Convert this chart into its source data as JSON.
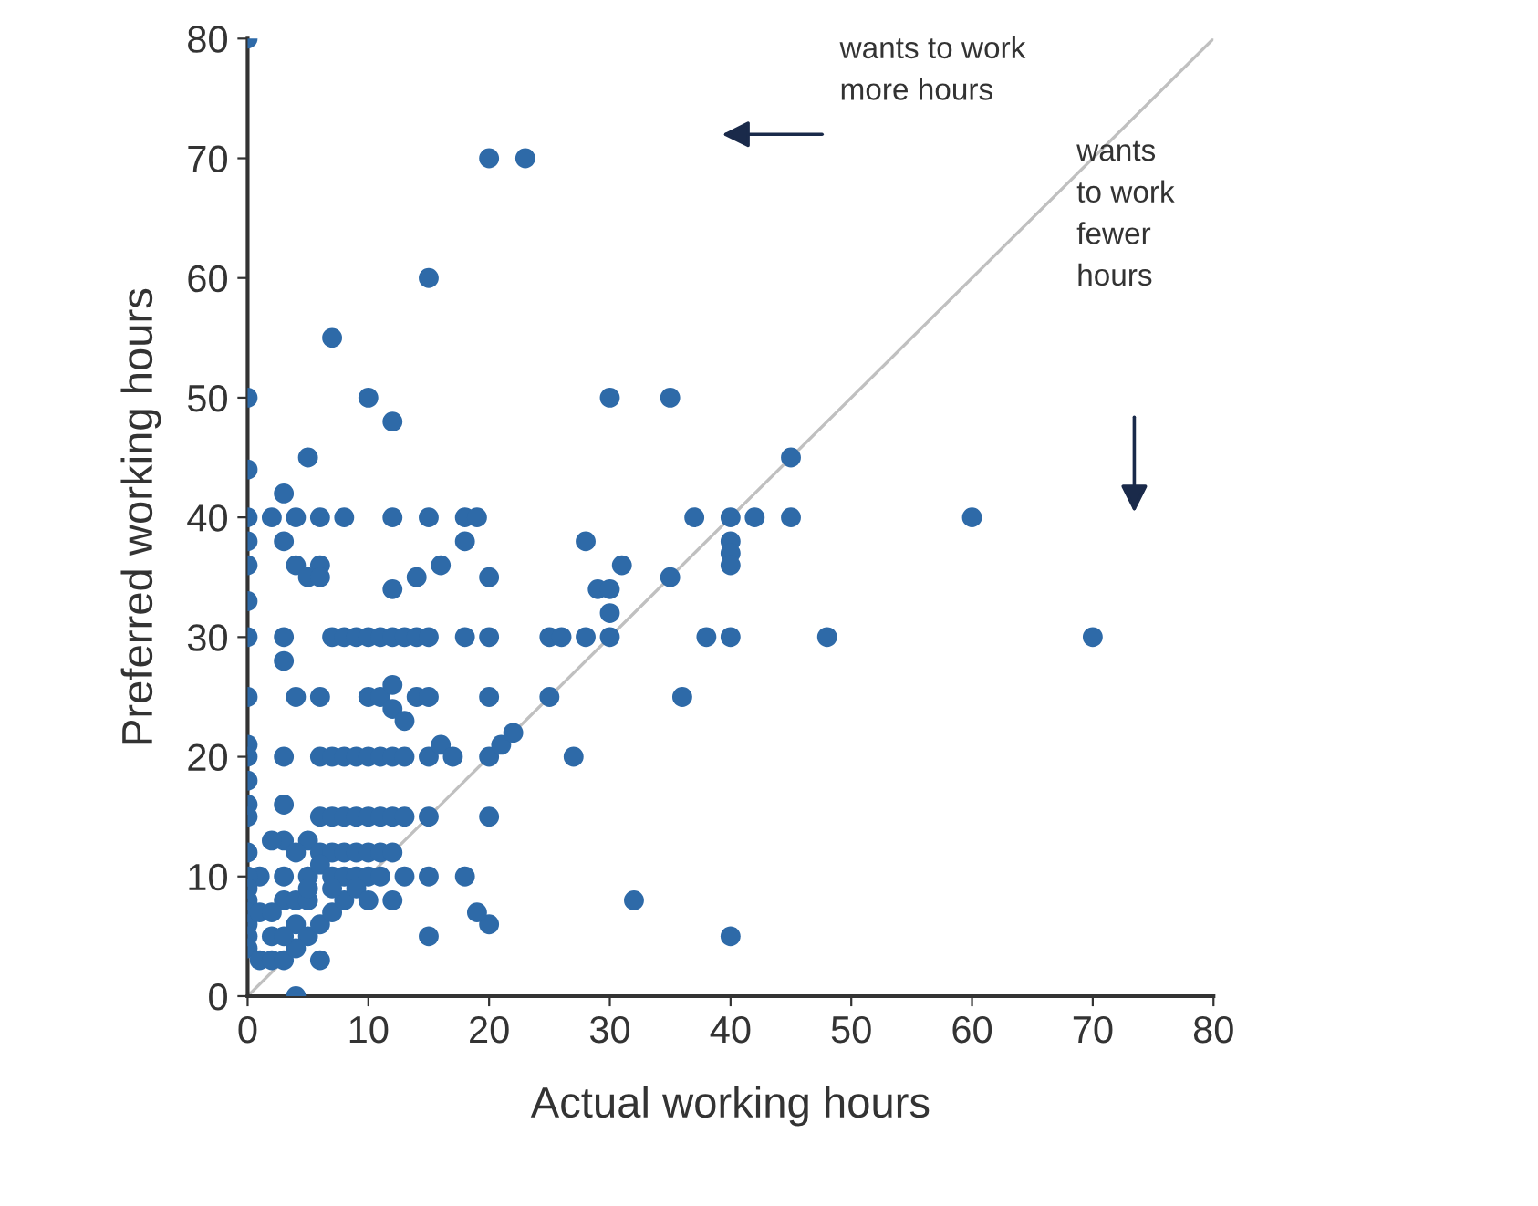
{
  "chart_data": {
    "type": "scatter",
    "xlabel": "Actual working hours",
    "ylabel": "Preferred working hours",
    "xlim": [
      0,
      80
    ],
    "ylim": [
      0,
      80
    ],
    "xticks": [
      0,
      10,
      20,
      30,
      40,
      50,
      60,
      70,
      80
    ],
    "yticks": [
      0,
      10,
      20,
      30,
      40,
      50,
      60,
      70,
      80
    ],
    "grid": false,
    "annotations": [
      "wants to work\nmore hours",
      "wants\nto work\nfewer\nhours"
    ],
    "series": [
      {
        "color": "#2e6aa8",
        "marker": "circle",
        "x": [
          0,
          20,
          23,
          15,
          7,
          10,
          0,
          12,
          30,
          35,
          0,
          5,
          45,
          0,
          2,
          4,
          6,
          8,
          12,
          15,
          18,
          19,
          37,
          40,
          42,
          45,
          60,
          3,
          3,
          0,
          18,
          28,
          0,
          4,
          6,
          12,
          14,
          16,
          20,
          29,
          30,
          31,
          35,
          40,
          40,
          40,
          0,
          5,
          6,
          0,
          3,
          7,
          8,
          9,
          10,
          11,
          12,
          13,
          14,
          15,
          18,
          20,
          25,
          26,
          28,
          30,
          30,
          38,
          40,
          48,
          70,
          3,
          0,
          4,
          6,
          10,
          11,
          12,
          12,
          13,
          14,
          15,
          20,
          25,
          36,
          0,
          0,
          3,
          6,
          7,
          8,
          9,
          10,
          11,
          12,
          13,
          15,
          16,
          17,
          20,
          21,
          22,
          27,
          0,
          0,
          3,
          0,
          3,
          6,
          7,
          8,
          9,
          10,
          11,
          12,
          13,
          15,
          20,
          2,
          5,
          0,
          4,
          6,
          7,
          8,
          9,
          10,
          11,
          12,
          1,
          3,
          5,
          6,
          7,
          8,
          9,
          10,
          11,
          13,
          15,
          18,
          0,
          0,
          0,
          0,
          0,
          0,
          0,
          1,
          2,
          3,
          4,
          5,
          6,
          7,
          8,
          9,
          1,
          2,
          3,
          4,
          5,
          6,
          10,
          12,
          15,
          20,
          19,
          32,
          40,
          4,
          5,
          7,
          4,
          3,
          2
        ],
        "values": [
          80,
          70,
          70,
          60,
          55,
          50,
          50,
          48,
          50,
          50,
          44,
          45,
          45,
          40,
          40,
          40,
          40,
          40,
          40,
          40,
          40,
          40,
          40,
          40,
          40,
          40,
          40,
          42,
          38,
          38,
          38,
          38,
          36,
          36,
          36,
          34,
          35,
          36,
          35,
          34,
          34,
          36,
          35,
          38,
          37,
          36,
          33,
          35,
          35,
          30,
          30,
          30,
          30,
          30,
          30,
          30,
          30,
          30,
          30,
          30,
          30,
          30,
          30,
          30,
          30,
          30,
          32,
          30,
          30,
          30,
          30,
          28,
          25,
          25,
          25,
          25,
          25,
          26,
          24,
          23,
          25,
          25,
          25,
          25,
          25,
          21,
          20,
          20,
          20,
          20,
          20,
          20,
          20,
          20,
          20,
          20,
          20,
          21,
          20,
          20,
          21,
          22,
          20,
          18,
          16,
          16,
          15,
          13,
          15,
          15,
          15,
          15,
          15,
          15,
          15,
          15,
          15,
          15,
          13,
          13,
          12,
          12,
          12,
          12,
          12,
          12,
          12,
          12,
          12,
          10,
          10,
          10,
          11,
          10,
          10,
          10,
          10,
          10,
          10,
          10,
          10,
          10,
          9,
          8,
          7,
          6,
          5,
          4,
          3,
          3,
          3,
          6,
          5,
          6,
          7,
          8,
          9,
          7,
          5,
          8,
          8,
          8,
          3,
          8,
          8,
          5,
          6,
          7,
          8,
          5,
          0,
          9,
          9,
          4,
          5,
          7
        ]
      },
      {
        "type": "line",
        "color": "#c0c0c0",
        "x": [
          0,
          80
        ],
        "values": [
          0,
          80
        ]
      }
    ]
  }
}
